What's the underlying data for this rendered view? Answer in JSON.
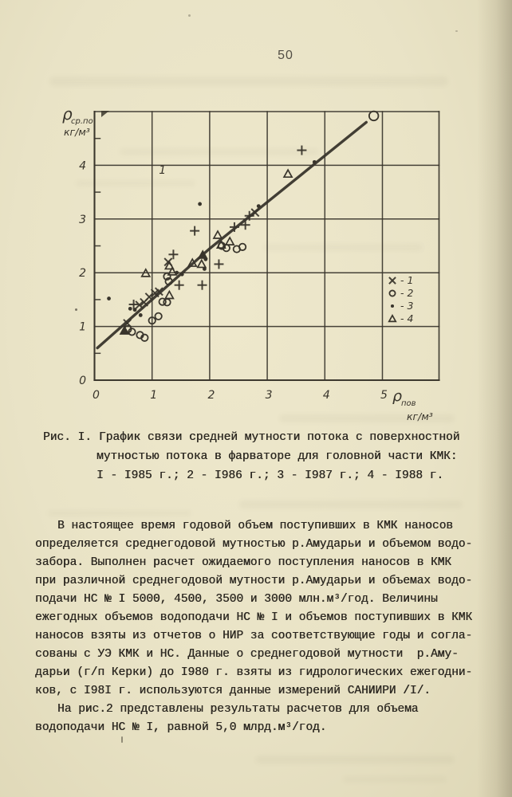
{
  "page": {
    "number": "50"
  },
  "colors": {
    "paper": "#e9e3c6",
    "ink_chart": "#39352c",
    "ink_text": "#2d2922"
  },
  "chart_data": {
    "type": "scatter",
    "title": "",
    "xlabel": "ρпов, кг/м³",
    "ylabel": "ρср.по, кг/м³",
    "axis_labels": {
      "y_sym": "ρ",
      "y_sub": "ср.по",
      "y_units": "кг/м³",
      "x_sym": "ρ",
      "x_sub": "пов",
      "x_units": "кг/м³"
    },
    "xlim": [
      0,
      6
    ],
    "ylim": [
      0,
      5
    ],
    "x_ticks": [
      0,
      1,
      2,
      3,
      4,
      5
    ],
    "y_ticks": [
      0,
      1,
      2,
      3,
      4
    ],
    "grid": true,
    "legend_position": "right-middle",
    "legend": [
      {
        "marker": "cross",
        "variant": "x",
        "label": "- 1"
      },
      {
        "marker": "open-circle",
        "label": "- 2"
      },
      {
        "marker": "filled-dot",
        "label": "- 3"
      },
      {
        "marker": "triangle",
        "label": "- 4"
      }
    ],
    "annotation": {
      "text": "1",
      "x": 1.18,
      "y": 3.84
    },
    "trend_line": [
      [
        0.05,
        0.6
      ],
      [
        2.0,
        2.45
      ],
      [
        4.72,
        4.8
      ]
    ],
    "series": [
      {
        "name": "1 (I985)",
        "marker": "cross",
        "points": [
          [
            3.6,
            4.28
          ],
          [
            2.69,
            3.06
          ],
          [
            2.43,
            2.85
          ],
          [
            1.74,
            2.78
          ],
          [
            1.37,
            2.34
          ],
          [
            2.16,
            2.16
          ],
          [
            1.47,
            1.77
          ],
          [
            1.87,
            1.77
          ],
          [
            0.68,
            1.41
          ],
          [
            2.62,
            2.89
          ],
          [
            2.79,
            3.12,
            "x"
          ],
          [
            1.05,
            1.62,
            "x"
          ],
          [
            1.12,
            1.65,
            "x"
          ],
          [
            0.78,
            1.4,
            "x"
          ],
          [
            0.86,
            1.45,
            "x"
          ],
          [
            0.57,
            1.06,
            "x"
          ],
          [
            0.95,
            1.55,
            "x"
          ],
          [
            1.28,
            2.2,
            "x"
          ]
        ]
      },
      {
        "name": "2 (I986)",
        "marker": "open-circle",
        "points": [
          [
            4.85,
            4.92,
            "big"
          ],
          [
            2.21,
            2.5
          ],
          [
            2.29,
            2.46
          ],
          [
            2.47,
            2.44
          ],
          [
            2.57,
            2.48
          ],
          [
            1.26,
            1.93
          ],
          [
            1.29,
            1.84
          ],
          [
            1.18,
            1.46
          ],
          [
            1.26,
            1.45
          ],
          [
            1.0,
            1.11
          ],
          [
            1.11,
            1.19
          ],
          [
            0.58,
            0.95
          ],
          [
            0.65,
            0.9
          ],
          [
            0.79,
            0.84
          ],
          [
            0.87,
            0.79
          ]
        ]
      },
      {
        "name": "3 (I987)",
        "marker": "filled-dot",
        "points": [
          [
            3.82,
            4.06
          ],
          [
            2.85,
            3.24
          ],
          [
            1.83,
            3.28
          ],
          [
            0.25,
            1.52
          ],
          [
            1.43,
            2.0
          ],
          [
            1.52,
            1.97
          ],
          [
            1.91,
            2.07
          ],
          [
            0.62,
            1.33
          ],
          [
            0.7,
            1.31
          ],
          [
            0.8,
            1.21
          ],
          [
            1.93,
            2.25
          ]
        ]
      },
      {
        "name": "4 (I988)",
        "marker": "triangle",
        "points": [
          [
            3.36,
            3.84
          ],
          [
            2.14,
            2.7
          ],
          [
            2.35,
            2.58
          ],
          [
            2.2,
            2.52
          ],
          [
            1.7,
            2.18
          ],
          [
            1.3,
            2.13
          ],
          [
            0.89,
            1.99
          ],
          [
            1.35,
            2.02
          ],
          [
            1.3,
            1.58
          ],
          [
            1.86,
            2.16
          ],
          [
            1.88,
            2.33,
            "filled"
          ],
          [
            0.52,
            0.92,
            "filled"
          ]
        ]
      }
    ]
  },
  "caption": {
    "prefix": "Рис. I.",
    "line1": "График связи средней мутности потока с поверхностной",
    "line2": "мутностью потока в фарваторе для головной части КМК:",
    "line3": "I - I985 г.; 2 - I986 г.; 3 - I987 г.; 4 - I988 г."
  },
  "body": {
    "p1": [
      "В настоящее время годовой объем поступивших в КМК наносов",
      "определяется среднегодовой мутностью р.Амударьи и объемом водо-",
      "забора. Выполнен расчет ожидаемого поступления наносов в КМК",
      "при различной среднегодовой мутности р.Амударьи и объемах водо-",
      "подачи НС № I 5000, 4500, 3500 и 3000 млн.м³/год. Величины",
      "ежегодных объемов водоподачи НС № I и объемов поступивших в КМК",
      "наносов взяты из отчетов о НИР за соответствующие годы и согла-",
      "сованы с УЭ КМК и НС. Данные о среднегодовой мутности  р.Аму-",
      "дарьи (г/п Керки) до I980 г. взяты из гидрологических ежегодни-",
      "ков, с I98I г. используются данные измерений САНИИРИ /I/."
    ],
    "p2": [
      "На рис.2 представлены результаты расчетов для объема",
      "водоподачи НС № I, равной 5,0 млрд.м³/год."
    ]
  }
}
